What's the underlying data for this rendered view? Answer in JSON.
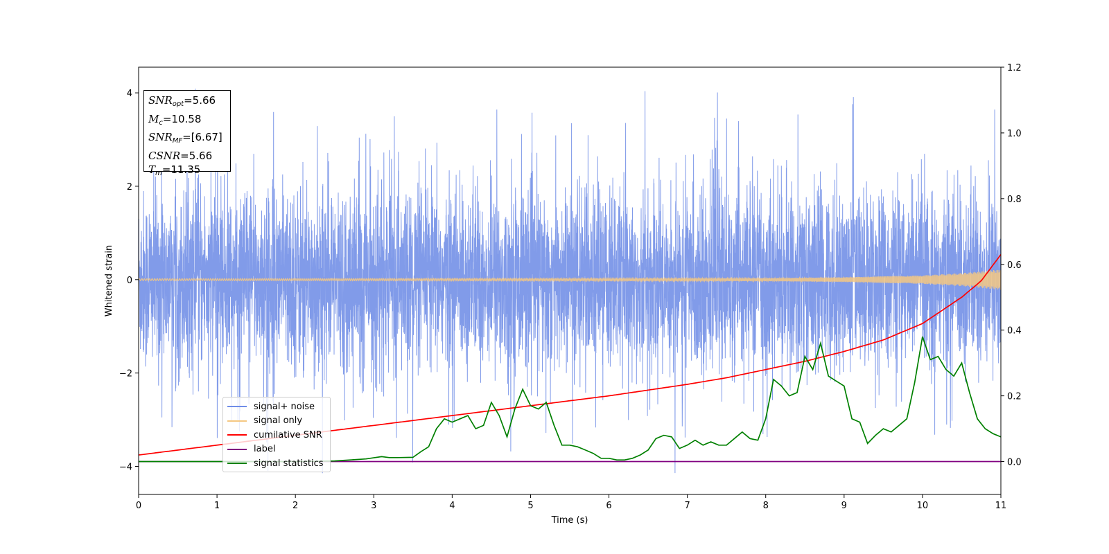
{
  "chart_data": {
    "type": "line",
    "xlabel": "Time (s)",
    "ylabel": "Whitened strain",
    "xlim": [
      0,
      11
    ],
    "ylim": [
      -4.6,
      4.55
    ],
    "y2lim": [
      -0.1,
      1.2
    ],
    "x_ticks": [
      "0",
      "1",
      "2",
      "3",
      "4",
      "5",
      "6",
      "7",
      "8",
      "9",
      "10",
      "11"
    ],
    "y_ticks": [
      "−4",
      "−2",
      "0",
      "2",
      "4"
    ],
    "y2_ticks": [
      "0.0",
      "0.2",
      "0.4",
      "0.6",
      "0.8",
      "1.0",
      "1.2"
    ],
    "legend_position": "lower-left",
    "series": [
      {
        "name": "signal+ noise",
        "axis": "left",
        "color": "#7a96e8",
        "description_envelope": {
          "typical_amplitude": 1.7,
          "peak_max": 4.15,
          "peak_min": -4.15
        }
      },
      {
        "name": "signal only",
        "axis": "left",
        "color": "#f5c882",
        "envelope": {
          "x": [
            0,
            8,
            9,
            10,
            10.5,
            11
          ],
          "amp": [
            0.02,
            0.03,
            0.05,
            0.09,
            0.14,
            0.22
          ]
        }
      },
      {
        "name": "cumilative SNR",
        "axis": "right",
        "color": "#ff0000",
        "x": [
          0,
          1,
          2,
          3,
          4,
          5,
          6,
          7,
          7.5,
          8,
          8.5,
          9,
          9.5,
          10,
          10.25,
          10.5,
          10.75,
          11
        ],
        "y": [
          0.02,
          0.05,
          0.08,
          0.11,
          0.14,
          0.17,
          0.2,
          0.235,
          0.255,
          0.28,
          0.305,
          0.335,
          0.37,
          0.42,
          0.46,
          0.5,
          0.55,
          0.63
        ]
      },
      {
        "name": "label",
        "axis": "right",
        "color": "#800080",
        "x": [
          0,
          11
        ],
        "y": [
          0.0,
          0.0
        ]
      },
      {
        "name": "signal statistics",
        "axis": "right",
        "color": "#008000",
        "x": [
          0,
          0.3,
          1,
          2,
          2.5,
          2.9,
          3.1,
          3.2,
          3.3,
          3.5,
          3.6,
          3.7,
          3.8,
          3.9,
          4.0,
          4.1,
          4.2,
          4.3,
          4.4,
          4.5,
          4.6,
          4.7,
          4.8,
          4.9,
          5.0,
          5.1,
          5.2,
          5.3,
          5.4,
          5.5,
          5.6,
          5.7,
          5.8,
          5.9,
          6.0,
          6.1,
          6.2,
          6.3,
          6.4,
          6.5,
          6.6,
          6.7,
          6.8,
          6.9,
          7.0,
          7.1,
          7.2,
          7.3,
          7.4,
          7.5,
          7.6,
          7.7,
          7.8,
          7.9,
          8.0,
          8.1,
          8.2,
          8.3,
          8.4,
          8.5,
          8.6,
          8.7,
          8.8,
          8.9,
          9.0,
          9.1,
          9.2,
          9.3,
          9.4,
          9.5,
          9.6,
          9.7,
          9.8,
          9.9,
          10.0,
          10.1,
          10.2,
          10.3,
          10.4,
          10.5,
          10.6,
          10.7,
          10.8,
          10.9,
          11.0
        ],
        "y": [
          0.0,
          0.0,
          0.0,
          0.0,
          0.002,
          0.008,
          0.015,
          0.012,
          0.012,
          0.013,
          0.03,
          0.045,
          0.1,
          0.13,
          0.12,
          0.13,
          0.14,
          0.1,
          0.11,
          0.18,
          0.14,
          0.075,
          0.16,
          0.22,
          0.17,
          0.16,
          0.18,
          0.11,
          0.05,
          0.05,
          0.045,
          0.035,
          0.025,
          0.01,
          0.01,
          0.005,
          0.005,
          0.01,
          0.02,
          0.035,
          0.07,
          0.08,
          0.075,
          0.04,
          0.05,
          0.065,
          0.05,
          0.06,
          0.05,
          0.05,
          0.07,
          0.09,
          0.07,
          0.065,
          0.13,
          0.25,
          0.23,
          0.2,
          0.21,
          0.32,
          0.28,
          0.36,
          0.26,
          0.245,
          0.23,
          0.13,
          0.12,
          0.055,
          0.08,
          0.1,
          0.09,
          0.11,
          0.13,
          0.24,
          0.38,
          0.31,
          0.32,
          0.28,
          0.26,
          0.3,
          0.21,
          0.13,
          0.1,
          0.085,
          0.075
        ]
      }
    ],
    "annotation": {
      "lines": [
        {
          "main": "SNR",
          "sub": "opt",
          "value": "=5.66"
        },
        {
          "main": "M",
          "sub": "c",
          "value": "=10.58"
        },
        {
          "main": "SNR",
          "sub": "MF",
          "value": "=[6.67]"
        },
        {
          "main": "CSNR",
          "sub": "",
          "value": "=5.66"
        },
        {
          "main": "T",
          "sub": "m",
          "value": "=11.35"
        }
      ]
    }
  }
}
